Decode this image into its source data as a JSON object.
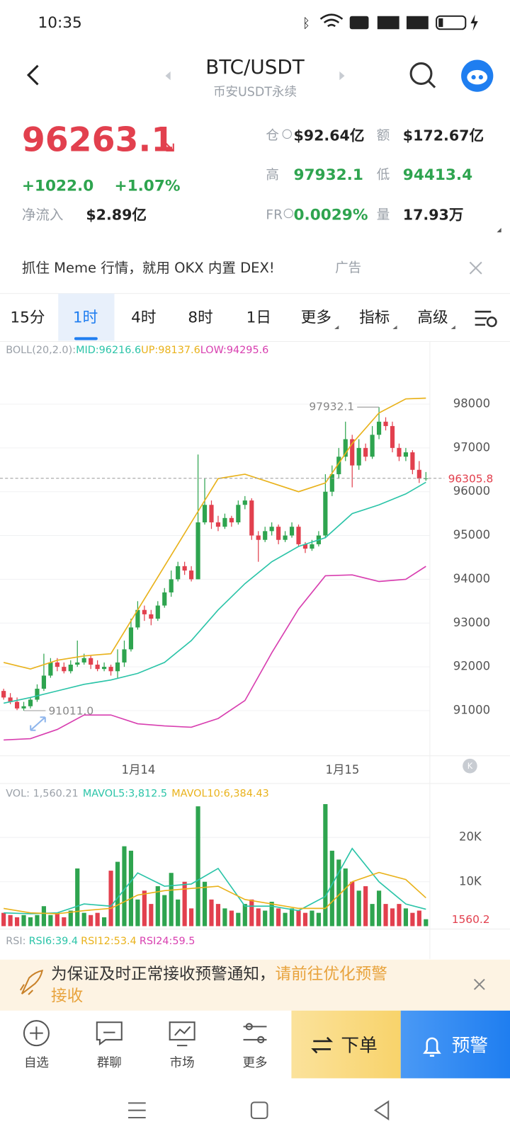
{
  "status": {
    "time": "10:35"
  },
  "header": {
    "title": "BTC/USDT",
    "subtitle": "币安USDT永续"
  },
  "ticker": {
    "price": "96263.1",
    "change": "+1022.0",
    "change_pct": "+1.07%",
    "inflow_label": "净流入",
    "inflow": "$2.89亿",
    "oi_label": "仓",
    "oi": "$92.64亿",
    "amount_label": "额",
    "amount": "$172.67亿",
    "high_label": "高",
    "high": "97932.1",
    "low_label": "低",
    "low": "94413.4",
    "fr_label": "FR",
    "fr": "0.0029%",
    "vol_label": "量",
    "vol": "17.93万"
  },
  "ad": {
    "text": "抓住 Meme 行情，就用 OKX 内置 DEX!",
    "tag": "广告"
  },
  "tabs": [
    "15分",
    "1时",
    "4时",
    "8时",
    "1日",
    "更多",
    "指标",
    "高级"
  ],
  "chart_data": [
    {
      "type": "candlestick",
      "indicator": "BOLL(20,2.0):",
      "candles": [
        [
          91450,
          91500,
          91250,
          91300
        ],
        [
          91300,
          91400,
          91150,
          91200
        ],
        [
          91200,
          91300,
          91011.0,
          91050
        ],
        [
          91050,
          91200,
          91000,
          91100
        ],
        [
          91100,
          91300,
          91050,
          91250
        ],
        [
          91250,
          91600,
          91200,
          91500
        ],
        [
          91500,
          92300,
          91450,
          91800
        ],
        [
          91800,
          92200,
          91750,
          92100
        ],
        [
          92100,
          92200,
          91900,
          92000
        ],
        [
          92000,
          92100,
          91850,
          91900
        ],
        [
          91900,
          92150,
          91850,
          92050
        ],
        [
          92050,
          92600,
          92000,
          92100
        ],
        [
          92100,
          92300,
          92050,
          92200
        ],
        [
          92200,
          92250,
          91950,
          92050
        ],
        [
          92050,
          92150,
          91900,
          91950
        ],
        [
          91950,
          92100,
          91900,
          92000
        ],
        [
          92000,
          92050,
          91800,
          91900
        ],
        [
          91900,
          92400,
          91750,
          92100
        ],
        [
          92100,
          92600,
          92000,
          92400
        ],
        [
          92400,
          93100,
          92350,
          92900
        ],
        [
          92900,
          93500,
          92850,
          93300
        ],
        [
          93300,
          93400,
          93050,
          93200
        ],
        [
          93200,
          93300,
          92950,
          93100
        ],
        [
          93100,
          93500,
          93050,
          93400
        ],
        [
          93400,
          93800,
          93350,
          93700
        ],
        [
          93700,
          94200,
          93600,
          94000
        ],
        [
          94000,
          94400,
          93950,
          94300
        ],
        [
          94300,
          94400,
          94100,
          94200
        ],
        [
          94200,
          94300,
          93950,
          94000
        ],
        [
          94000,
          96850,
          94000,
          95300
        ],
        [
          95300,
          96300,
          95250,
          95700
        ],
        [
          95700,
          95800,
          95150,
          95300
        ],
        [
          95300,
          95450,
          95100,
          95200
        ],
        [
          95200,
          95500,
          95150,
          95400
        ],
        [
          95400,
          95450,
          95200,
          95300
        ],
        [
          95300,
          95800,
          95250,
          95700
        ],
        [
          95700,
          95900,
          95600,
          95800
        ],
        [
          95800,
          95850,
          94900,
          95000
        ],
        [
          95000,
          95100,
          94400,
          94900
        ],
        [
          94900,
          95200,
          94850,
          95100
        ],
        [
          95100,
          95300,
          95000,
          95200
        ],
        [
          95200,
          95250,
          94800,
          94900
        ],
        [
          94900,
          95100,
          94850,
          95000
        ],
        [
          95000,
          95300,
          94950,
          95200
        ],
        [
          95200,
          95250,
          94750,
          94800
        ],
        [
          94800,
          94850,
          94600,
          94700
        ],
        [
          94700,
          94900,
          94650,
          94800
        ],
        [
          94800,
          95100,
          94750,
          95000
        ],
        [
          95000,
          96400,
          94950,
          96000
        ],
        [
          96000,
          96600,
          95900,
          96400
        ],
        [
          96400,
          97000,
          96300,
          96800
        ],
        [
          96800,
          97600,
          96700,
          97200
        ],
        [
          97200,
          97300,
          96100,
          96600
        ],
        [
          96600,
          97200,
          96500,
          97000
        ],
        [
          97000,
          97100,
          96700,
          96800
        ],
        [
          96800,
          97500,
          96750,
          97300
        ],
        [
          97300,
          97932.1,
          97200,
          97600
        ],
        [
          97600,
          97700,
          97400,
          97500
        ],
        [
          97500,
          97600,
          96900,
          97000
        ],
        [
          97000,
          97100,
          96700,
          96800
        ],
        [
          96800,
          97000,
          96700,
          96900
        ],
        [
          96900,
          96950,
          96400,
          96500
        ],
        [
          96500,
          96700,
          96200,
          96300
        ],
        [
          96300,
          96450,
          96250,
          96305.8
        ]
      ],
      "up_color": "#2ea44f",
      "down_color": "#e2404e",
      "line_x": [
        0,
        4,
        8,
        12,
        16,
        20,
        24,
        28,
        32,
        36,
        40,
        44,
        48,
        52,
        56,
        60,
        63
      ],
      "lines": [
        {
          "name": "MID:",
          "color": "#2bc4a8",
          "values": [
            91170,
            91300,
            91450,
            91600,
            91700,
            91850,
            92100,
            92600,
            93300,
            93900,
            94400,
            94750,
            94950,
            95500,
            95700,
            95950,
            96216.6
          ]
        },
        {
          "name": "UP:",
          "color": "#e9b21b",
          "values": [
            92100,
            91950,
            92150,
            92250,
            92300,
            93300,
            94300,
            95300,
            96300,
            96400,
            96200,
            96000,
            96200,
            97100,
            97800,
            98120,
            98137.6
          ]
        },
        {
          "name": "LOW:",
          "color": "#d83fb0",
          "values": [
            90330,
            90360,
            90570,
            90900,
            90900,
            90700,
            90650,
            90620,
            90820,
            91230,
            92320,
            93320,
            94080,
            94100,
            93950,
            94000,
            94295.6
          ]
        }
      ],
      "high_label": "97932.1",
      "low_label": "91011.0",
      "last_price": 96305.8,
      "ylim": [
        89985,
        99414
      ],
      "yticks": [
        91000,
        92000,
        93000,
        94000,
        95000,
        96000,
        97000,
        98000
      ],
      "x_labels": [
        "1月14",
        "1月15"
      ]
    },
    {
      "type": "bar",
      "title": "VOL: 1,560.21",
      "values": [
        3000,
        2500,
        2000,
        2500,
        2000,
        2500,
        4500,
        2500,
        3000,
        2000,
        3500,
        13000,
        3000,
        2500,
        3000,
        2000,
        12500,
        14500,
        18000,
        17000,
        6000,
        8000,
        5000,
        9000,
        7000,
        12000,
        6000,
        10000,
        4000,
        27000,
        10000,
        6000,
        5000,
        4000,
        3500,
        3000,
        5000,
        6000,
        4000,
        3500,
        5500,
        4000,
        3000,
        4000,
        3500,
        3000,
        3500,
        3000,
        27500,
        17000,
        15000,
        13000,
        10000,
        8000,
        9000,
        5000,
        8000,
        5000,
        4000,
        5000,
        4000,
        3000,
        3500,
        1560.2
      ],
      "lines": [
        {
          "name": "MAVOL5:",
          "color": "#2bc4a8",
          "legend_value": "3,812.5",
          "values": [
            3000,
            2800,
            3000,
            5000,
            4500,
            12000,
            9000,
            9500,
            13000,
            4500,
            4500,
            3500,
            6700,
            17500,
            10000,
            5000,
            3812.5
          ]
        },
        {
          "name": "MAVOL10:",
          "color": "#e9b21b",
          "legend_value": "6,384.43",
          "values": [
            4000,
            3000,
            2800,
            3500,
            4000,
            7000,
            8000,
            8500,
            9000,
            6000,
            5000,
            4000,
            4000,
            10000,
            12100,
            10500,
            6384.43
          ]
        }
      ],
      "last_value": 1560.2,
      "ylim": [
        0,
        31500
      ],
      "yticks": [
        {
          "value": 10000,
          "label": "10K"
        },
        {
          "value": 20000,
          "label": "20K"
        }
      ]
    },
    {
      "type": "rsi",
      "label": "RSI:",
      "series": [
        {
          "name": "RSI6:39.4",
          "color": "#2bc4a8"
        },
        {
          "name": "RSI12:53.4",
          "color": "#e9b21b"
        },
        {
          "name": "RSI24:59.5",
          "color": "#d83fb0"
        }
      ]
    }
  ],
  "notice": {
    "text": "为保证及时正常接收预警通知，",
    "link": "请前往优化预警",
    "link2": "接收"
  },
  "nav": [
    "自选",
    "群聊",
    "市场",
    "更多"
  ],
  "buttons": {
    "order": "下单",
    "alert": "预警"
  }
}
